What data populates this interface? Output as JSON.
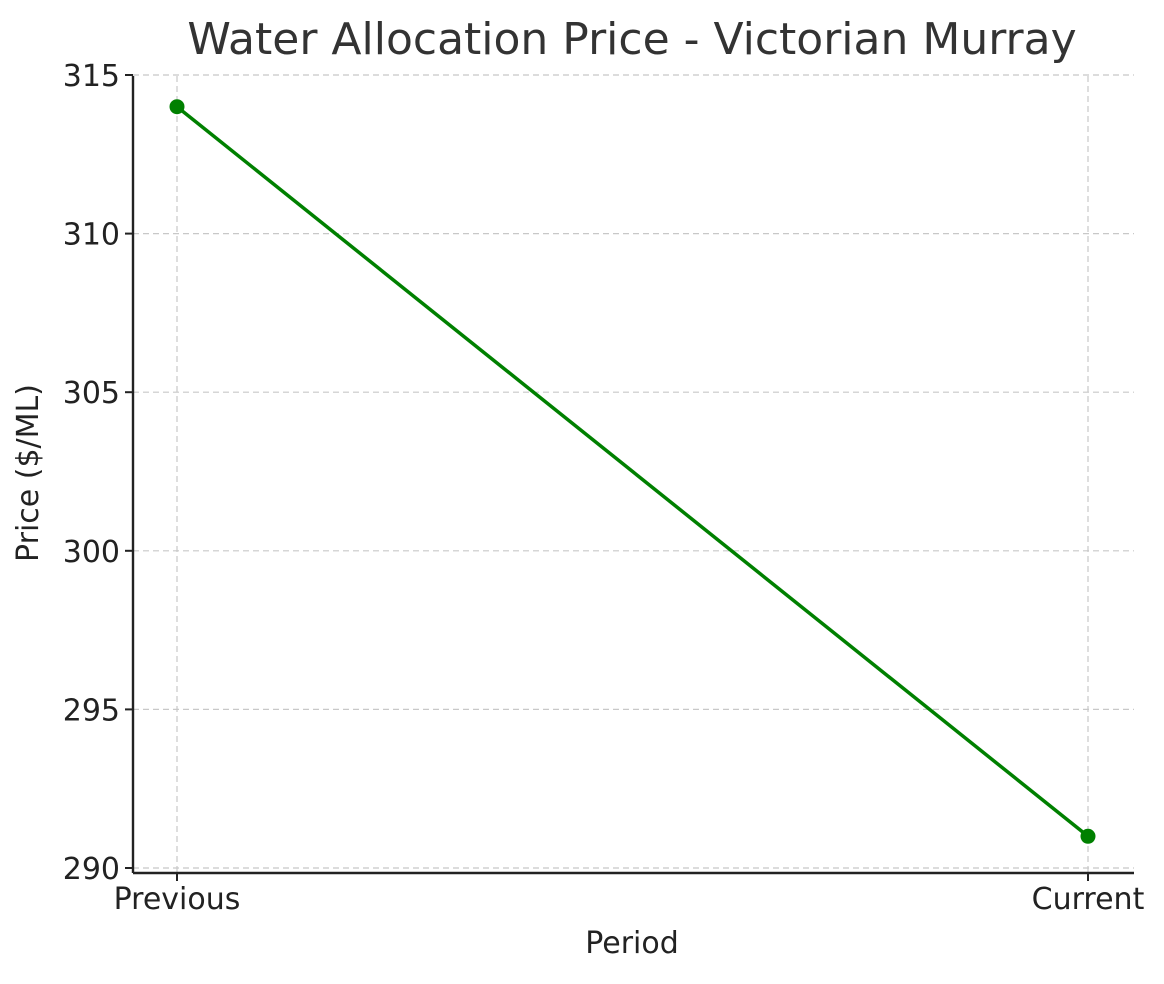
{
  "chart_data": {
    "type": "line",
    "title": "Water Allocation Price - Victorian Murray",
    "xlabel": "Period",
    "ylabel": "Price ($/ML)",
    "categories": [
      "Previous",
      "Current"
    ],
    "series": [
      {
        "name": "Price",
        "values": [
          314,
          291
        ],
        "color": "#008000",
        "marker": "circle"
      }
    ],
    "ylim": [
      290,
      315
    ],
    "yticks": [
      290,
      295,
      300,
      305,
      310,
      315
    ],
    "ytick_labels": [
      "290",
      "295",
      "300",
      "305",
      "310",
      "315"
    ],
    "grid": true,
    "grid_style": "dashed",
    "legend": "none"
  }
}
